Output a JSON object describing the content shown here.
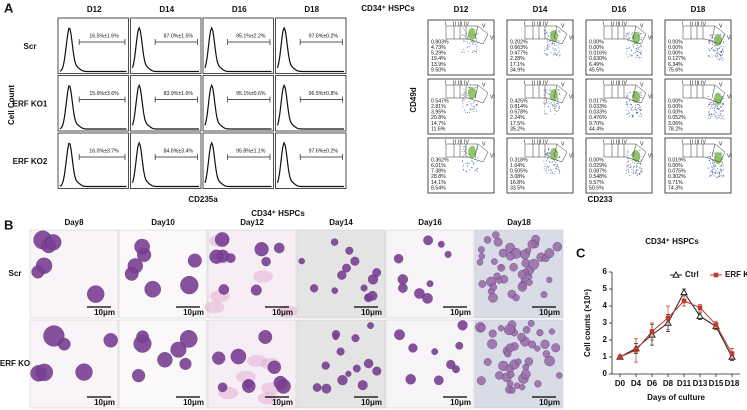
{
  "panel_a": {
    "label": "A",
    "histograms": {
      "days": [
        "D12",
        "D14",
        "D16",
        "D18"
      ],
      "groups": [
        "Scr",
        "ERF KO1",
        "ERF KO2"
      ],
      "y_label": "Cell Count",
      "x_label": "CD235a",
      "percentages": [
        [
          "16.5%±1.6%",
          "87.0%±1.5%",
          "95.1%±2.2%",
          "97.6%±0.2%"
        ],
        [
          "15.9%±3.6%",
          "83.9%±1.6%",
          "95.1%±0.6%",
          "96.5%±0.8%"
        ],
        [
          "16.0%±3.7%",
          "84.6%±3.4%",
          "95.8%±1.1%",
          "97.6%±0.2%"
        ]
      ]
    },
    "flow": {
      "title": "CD34⁺ HSPCs",
      "days": [
        "D12",
        "D14",
        "D16",
        "D18"
      ],
      "y_label": "CD49d",
      "x_label": "CD233",
      "gates": [
        "I",
        "II",
        "III",
        "IV",
        "V",
        "VI"
      ],
      "percentages": [
        [
          [
            "0.803%",
            "4.73%",
            "5.29%",
            "19.4%",
            "13.9%",
            "9.50%"
          ],
          [
            "0.202%",
            "0.663%",
            "0.477%",
            "2.28%",
            "17.1%",
            "34.9%"
          ],
          [
            "0.00%",
            "0.00%",
            "0.016%",
            "0.630%",
            "6.49%",
            "45.5%"
          ],
          [
            "0.00%",
            "0.00%",
            "0.00%",
            "0.127%",
            "6.34%",
            "75.6%"
          ]
        ],
        [
          [
            "0.547%",
            "2.81%",
            "3.95%",
            "20.8%",
            "14.7%",
            "11.6%"
          ],
          [
            "0.425%",
            "0.814%",
            "0.578%",
            "2.24%",
            "17.5%",
            "35.2%"
          ],
          [
            "0.017%",
            "0.033%",
            "0.033%",
            "0.476%",
            "9.70%",
            "44.4%"
          ],
          [
            "0.00%",
            "0.00%",
            "0.00%",
            "0.052%",
            "3.06%",
            "78.2%"
          ]
        ],
        [
          [
            "0.362%",
            "6.01%",
            "7.38%",
            "28.8%",
            "14.1%",
            "8.54%"
          ],
          [
            "0.318%",
            "1.04%",
            "0.505%",
            "3.08%",
            "16.8%",
            "33.5%"
          ],
          [
            "0.00%",
            "0.029%",
            "0.087%",
            "0.548%",
            "9.57%",
            "50.5%"
          ],
          [
            "0.019%",
            "0.00%",
            "0.075%",
            "0.302%",
            "9.71%",
            "74.3%"
          ]
        ]
      ]
    }
  },
  "panel_b": {
    "label": "B",
    "title": "CD34⁺ HSPCs",
    "days": [
      "Day8",
      "Day10",
      "Day12",
      "Day14",
      "Day16",
      "Day18"
    ],
    "groups": [
      "Scr",
      "ERF KO"
    ],
    "scale_bar": "10μm"
  },
  "panel_c_label": "C",
  "chart_data": {
    "type": "line",
    "title": "CD34⁺ HSPCs",
    "categories": [
      "D0",
      "D4",
      "D6",
      "D8",
      "D11",
      "D13",
      "D15",
      "D18"
    ],
    "series": [
      {
        "name": "Ctrl",
        "color": "#222222",
        "marker": "triangle",
        "values": [
          1.0,
          1.5,
          2.3,
          3.0,
          4.8,
          3.4,
          2.8,
          1.0
        ],
        "errors": [
          0.1,
          0.3,
          0.6,
          0.5,
          0.2,
          0.2,
          0.2,
          0.2
        ]
      },
      {
        "name": "ERF KO",
        "color": "#c0392b",
        "marker": "square",
        "values": [
          1.0,
          1.4,
          2.5,
          3.3,
          4.3,
          3.9,
          2.9,
          1.2
        ],
        "errors": [
          0.1,
          0.7,
          0.5,
          0.7,
          0.3,
          0.2,
          0.2,
          0.3
        ]
      }
    ],
    "ylim": [
      0,
      6
    ],
    "yticks": [
      0,
      1,
      2,
      3,
      4,
      5,
      6
    ],
    "x_label": "Days of culture",
    "y_label": "Cell counts (×10⁵)",
    "legend": "top-right"
  }
}
